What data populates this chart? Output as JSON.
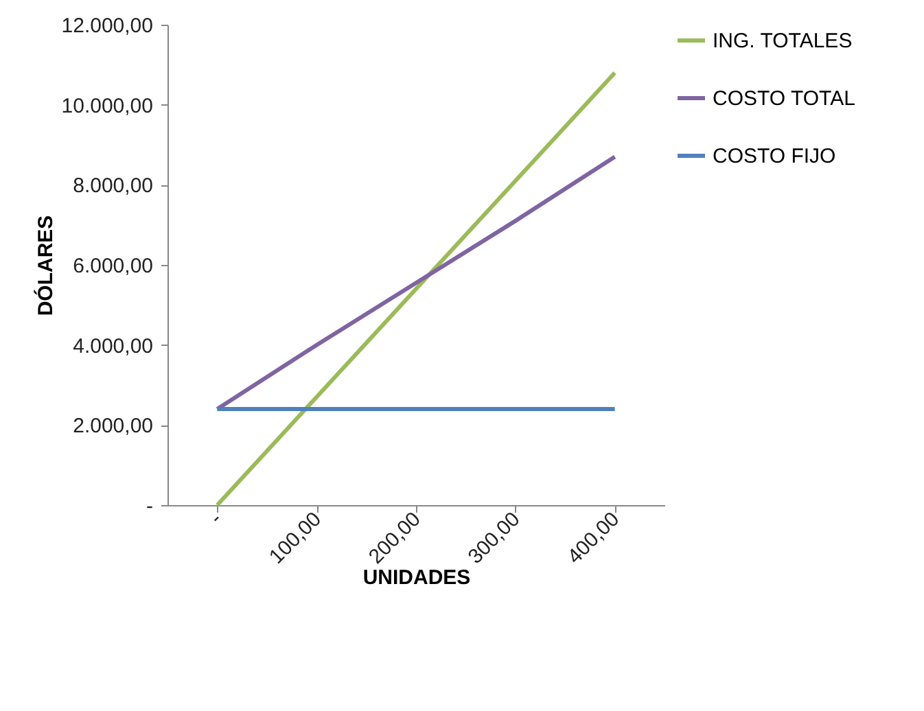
{
  "chart_data": {
    "type": "line",
    "xlabel": "UNIDADES",
    "ylabel": "DÓLARES",
    "categories": [
      "-",
      "100,00",
      "200,00",
      "300,00",
      "400,00"
    ],
    "series": [
      {
        "name": "ING. TOTALES",
        "color": "#9bbb59",
        "values": [
          0,
          2700,
          5400,
          8100,
          10800
        ]
      },
      {
        "name": "COSTO TOTAL",
        "color": "#8064a2",
        "values": [
          2400,
          4000,
          5550,
          7100,
          8700
        ]
      },
      {
        "name": "COSTO FIJO",
        "color": "#4f81bd",
        "values": [
          2400,
          2400,
          2400,
          2400,
          2400
        ]
      }
    ],
    "ylim": [
      0,
      12000
    ],
    "yticks": [
      {
        "value": 0,
        "label": "-"
      },
      {
        "value": 2000,
        "label": "2.000,00"
      },
      {
        "value": 4000,
        "label": "4.000,00"
      },
      {
        "value": 6000,
        "label": "6.000,00"
      },
      {
        "value": 8000,
        "label": "8.000,00"
      },
      {
        "value": 10000,
        "label": "10.000,00"
      },
      {
        "value": 12000,
        "label": "12.000,00"
      }
    ],
    "grid": false,
    "legend": "right",
    "marker": "none",
    "line_style": "solid"
  }
}
